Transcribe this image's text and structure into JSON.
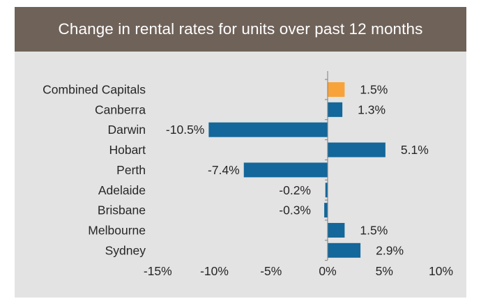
{
  "chart_data": {
    "type": "bar",
    "orientation": "horizontal",
    "title": "Change in rental rates for units over past 12 months",
    "categories": [
      "Combined Capitals",
      "Canberra",
      "Darwin",
      "Hobart",
      "Perth",
      "Adelaide",
      "Brisbane",
      "Melbourne",
      "Sydney"
    ],
    "values": [
      1.5,
      1.3,
      -10.5,
      5.1,
      -7.4,
      -0.2,
      -0.3,
      1.5,
      2.9
    ],
    "data_labels": [
      "1.5%",
      "1.3%",
      "-10.5%",
      "5.1%",
      "-7.4%",
      "-0.2%",
      "-0.3%",
      "1.5%",
      "2.9%"
    ],
    "bar_colors": [
      "#f7a33a",
      "#13679a",
      "#13679a",
      "#13679a",
      "#13679a",
      "#13679a",
      "#13679a",
      "#13679a",
      "#13679a"
    ],
    "xlim": [
      -15,
      10
    ],
    "x_ticks": [
      -15,
      -10,
      -5,
      0,
      5,
      10
    ],
    "x_tick_labels": [
      "-15%",
      "-10%",
      "-5%",
      "0%",
      "5%",
      "10%"
    ],
    "grid": false,
    "legend": false,
    "colors": {
      "panel_background": "#e3e3e3",
      "title_background": "#6f6259",
      "highlight": "#f7a33a",
      "bar": "#13679a"
    }
  }
}
